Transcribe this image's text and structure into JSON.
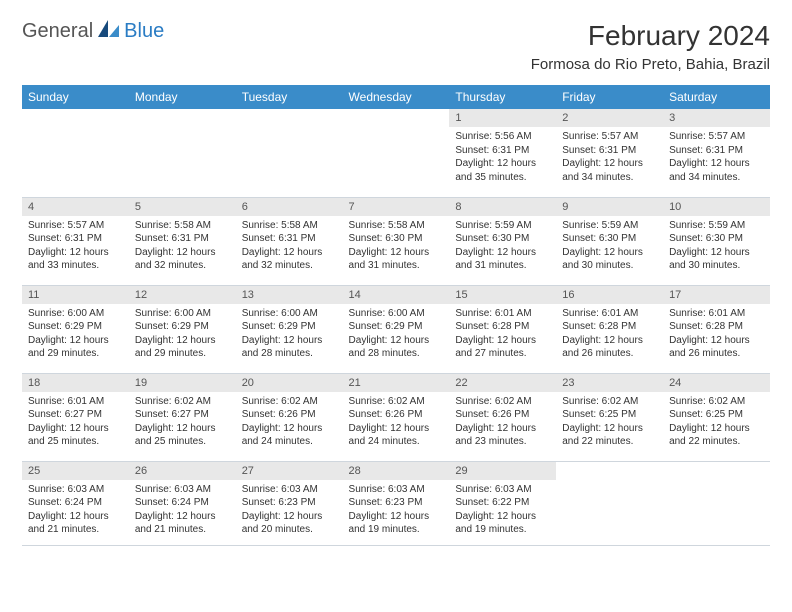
{
  "logo": {
    "part1": "General",
    "part2": "Blue"
  },
  "title": "February 2024",
  "location": "Formosa do Rio Preto, Bahia, Brazil",
  "colors": {
    "header_bg": "#3a8cc9",
    "header_text": "#ffffff",
    "daynum_bg": "#e8e8e8",
    "border": "#cfd6dd",
    "logo_blue": "#2a7cc4"
  },
  "weekdays": [
    "Sunday",
    "Monday",
    "Tuesday",
    "Wednesday",
    "Thursday",
    "Friday",
    "Saturday"
  ],
  "weeks": [
    [
      {
        "empty": true
      },
      {
        "empty": true
      },
      {
        "empty": true
      },
      {
        "empty": true
      },
      {
        "day": "1",
        "sunrise": "Sunrise: 5:56 AM",
        "sunset": "Sunset: 6:31 PM",
        "daylight": "Daylight: 12 hours and 35 minutes."
      },
      {
        "day": "2",
        "sunrise": "Sunrise: 5:57 AM",
        "sunset": "Sunset: 6:31 PM",
        "daylight": "Daylight: 12 hours and 34 minutes."
      },
      {
        "day": "3",
        "sunrise": "Sunrise: 5:57 AM",
        "sunset": "Sunset: 6:31 PM",
        "daylight": "Daylight: 12 hours and 34 minutes."
      }
    ],
    [
      {
        "day": "4",
        "sunrise": "Sunrise: 5:57 AM",
        "sunset": "Sunset: 6:31 PM",
        "daylight": "Daylight: 12 hours and 33 minutes."
      },
      {
        "day": "5",
        "sunrise": "Sunrise: 5:58 AM",
        "sunset": "Sunset: 6:31 PM",
        "daylight": "Daylight: 12 hours and 32 minutes."
      },
      {
        "day": "6",
        "sunrise": "Sunrise: 5:58 AM",
        "sunset": "Sunset: 6:31 PM",
        "daylight": "Daylight: 12 hours and 32 minutes."
      },
      {
        "day": "7",
        "sunrise": "Sunrise: 5:58 AM",
        "sunset": "Sunset: 6:30 PM",
        "daylight": "Daylight: 12 hours and 31 minutes."
      },
      {
        "day": "8",
        "sunrise": "Sunrise: 5:59 AM",
        "sunset": "Sunset: 6:30 PM",
        "daylight": "Daylight: 12 hours and 31 minutes."
      },
      {
        "day": "9",
        "sunrise": "Sunrise: 5:59 AM",
        "sunset": "Sunset: 6:30 PM",
        "daylight": "Daylight: 12 hours and 30 minutes."
      },
      {
        "day": "10",
        "sunrise": "Sunrise: 5:59 AM",
        "sunset": "Sunset: 6:30 PM",
        "daylight": "Daylight: 12 hours and 30 minutes."
      }
    ],
    [
      {
        "day": "11",
        "sunrise": "Sunrise: 6:00 AM",
        "sunset": "Sunset: 6:29 PM",
        "daylight": "Daylight: 12 hours and 29 minutes."
      },
      {
        "day": "12",
        "sunrise": "Sunrise: 6:00 AM",
        "sunset": "Sunset: 6:29 PM",
        "daylight": "Daylight: 12 hours and 29 minutes."
      },
      {
        "day": "13",
        "sunrise": "Sunrise: 6:00 AM",
        "sunset": "Sunset: 6:29 PM",
        "daylight": "Daylight: 12 hours and 28 minutes."
      },
      {
        "day": "14",
        "sunrise": "Sunrise: 6:00 AM",
        "sunset": "Sunset: 6:29 PM",
        "daylight": "Daylight: 12 hours and 28 minutes."
      },
      {
        "day": "15",
        "sunrise": "Sunrise: 6:01 AM",
        "sunset": "Sunset: 6:28 PM",
        "daylight": "Daylight: 12 hours and 27 minutes."
      },
      {
        "day": "16",
        "sunrise": "Sunrise: 6:01 AM",
        "sunset": "Sunset: 6:28 PM",
        "daylight": "Daylight: 12 hours and 26 minutes."
      },
      {
        "day": "17",
        "sunrise": "Sunrise: 6:01 AM",
        "sunset": "Sunset: 6:28 PM",
        "daylight": "Daylight: 12 hours and 26 minutes."
      }
    ],
    [
      {
        "day": "18",
        "sunrise": "Sunrise: 6:01 AM",
        "sunset": "Sunset: 6:27 PM",
        "daylight": "Daylight: 12 hours and 25 minutes."
      },
      {
        "day": "19",
        "sunrise": "Sunrise: 6:02 AM",
        "sunset": "Sunset: 6:27 PM",
        "daylight": "Daylight: 12 hours and 25 minutes."
      },
      {
        "day": "20",
        "sunrise": "Sunrise: 6:02 AM",
        "sunset": "Sunset: 6:26 PM",
        "daylight": "Daylight: 12 hours and 24 minutes."
      },
      {
        "day": "21",
        "sunrise": "Sunrise: 6:02 AM",
        "sunset": "Sunset: 6:26 PM",
        "daylight": "Daylight: 12 hours and 24 minutes."
      },
      {
        "day": "22",
        "sunrise": "Sunrise: 6:02 AM",
        "sunset": "Sunset: 6:26 PM",
        "daylight": "Daylight: 12 hours and 23 minutes."
      },
      {
        "day": "23",
        "sunrise": "Sunrise: 6:02 AM",
        "sunset": "Sunset: 6:25 PM",
        "daylight": "Daylight: 12 hours and 22 minutes."
      },
      {
        "day": "24",
        "sunrise": "Sunrise: 6:02 AM",
        "sunset": "Sunset: 6:25 PM",
        "daylight": "Daylight: 12 hours and 22 minutes."
      }
    ],
    [
      {
        "day": "25",
        "sunrise": "Sunrise: 6:03 AM",
        "sunset": "Sunset: 6:24 PM",
        "daylight": "Daylight: 12 hours and 21 minutes."
      },
      {
        "day": "26",
        "sunrise": "Sunrise: 6:03 AM",
        "sunset": "Sunset: 6:24 PM",
        "daylight": "Daylight: 12 hours and 21 minutes."
      },
      {
        "day": "27",
        "sunrise": "Sunrise: 6:03 AM",
        "sunset": "Sunset: 6:23 PM",
        "daylight": "Daylight: 12 hours and 20 minutes."
      },
      {
        "day": "28",
        "sunrise": "Sunrise: 6:03 AM",
        "sunset": "Sunset: 6:23 PM",
        "daylight": "Daylight: 12 hours and 19 minutes."
      },
      {
        "day": "29",
        "sunrise": "Sunrise: 6:03 AM",
        "sunset": "Sunset: 6:22 PM",
        "daylight": "Daylight: 12 hours and 19 minutes."
      },
      {
        "empty": true
      },
      {
        "empty": true
      }
    ]
  ]
}
